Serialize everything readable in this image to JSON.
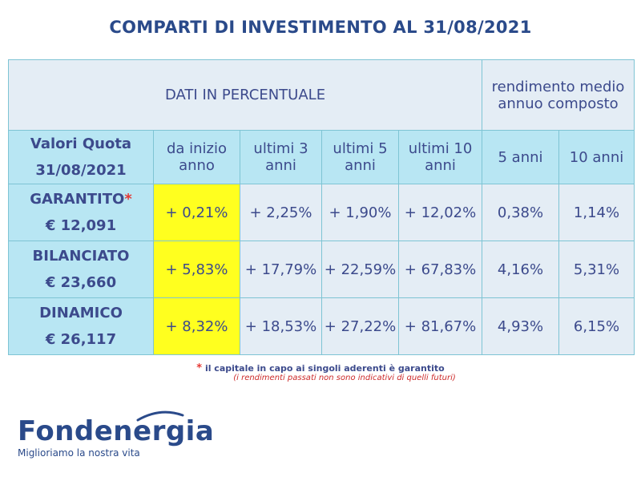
{
  "title": "COMPARTI DI INVESTIMENTO AL 31/08/2021",
  "header": {
    "dati": "DATI IN PERCENTUALE",
    "rendimento": "rendimento medio annuo composto"
  },
  "columns": {
    "valori_quota": "Valori Quota 31/08/2021",
    "inizio_anno": "da inizio anno",
    "ultimi3": "ultimi 3 anni",
    "ultimi5": "ultimi 5 anni",
    "ultimi10": "ultimi 10 anni",
    "cinque_anni": "5 anni",
    "dieci_anni": "10 anni"
  },
  "rows": [
    {
      "name": "GARANTITO",
      "marker": "*",
      "quota": "€ 12,091",
      "inizio": "+ 0,21%",
      "u3": "+ 2,25%",
      "u5": "+ 1,90%",
      "u10": "+ 12,02%",
      "r5": "0,38%",
      "r10": "1,14%"
    },
    {
      "name": "BILANCIATO",
      "marker": "",
      "quota": "€ 23,660",
      "inizio": "+ 5,83%",
      "u3": "+ 17,79%",
      "u5": "+ 22,59%",
      "u10": "+ 67,83%",
      "r5": "4,16%",
      "r10": "5,31%"
    },
    {
      "name": "DINAMICO",
      "marker": "",
      "quota": "€ 26,117",
      "inizio": "+ 8,32%",
      "u3": "+ 18,53%",
      "u5": "+ 27,22%",
      "u10": "+ 81,67%",
      "r5": "4,93%",
      "r10": "6,15%"
    }
  ],
  "notes": {
    "star": "*",
    "garantito": "il capitale in capo ai singoli aderenti è garantito",
    "disclaimer": "(i rendimenti passati non sono indicativi di quelli futuri)"
  },
  "logo": {
    "name": "Fondenergia",
    "tagline": "Miglioriamo la nostra vita"
  },
  "colors": {
    "highlight": "#ffff1f",
    "header_cyan": "#b8e6f3",
    "cell": "#e4edf5",
    "text": "#3c4a8c",
    "accent_red": "#e53935"
  }
}
